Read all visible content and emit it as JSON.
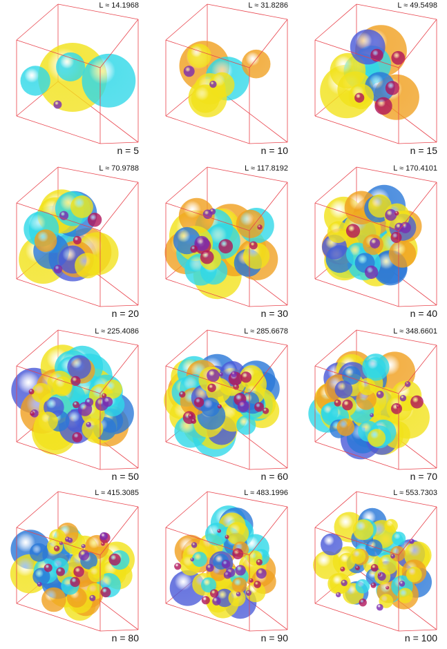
{
  "panels": [
    {
      "label": "L ≈ 14.1968",
      "caption": "n = 5",
      "n": 5
    },
    {
      "label": "L ≈ 31.8286",
      "caption": "n = 10",
      "n": 10
    },
    {
      "label": "L ≈ 49.5498",
      "caption": "n = 15",
      "n": 15
    },
    {
      "label": "L ≈ 70.9788",
      "caption": "n = 20",
      "n": 20
    },
    {
      "label": "L ≈ 117.8192",
      "caption": "n = 30",
      "n": 30
    },
    {
      "label": "L ≈ 170.4101",
      "caption": "n = 40",
      "n": 40
    },
    {
      "label": "L ≈ 225.4086",
      "caption": "n = 50",
      "n": 50
    },
    {
      "label": "L ≈ 285.6678",
      "caption": "n = 60",
      "n": 60
    },
    {
      "label": "L ≈ 348.6601",
      "caption": "n = 70",
      "n": 70
    },
    {
      "label": "L ≈ 415.3085",
      "caption": "n = 80",
      "n": 80
    },
    {
      "label": "L ≈ 483.1996",
      "caption": "n = 90",
      "n": 90
    },
    {
      "label": "L ≈ 553.7303",
      "caption": "n = 100",
      "n": 100
    }
  ],
  "colors": {
    "box_edge": "#e8414a",
    "yellow": "#f2e21a",
    "orange": "#f0a020",
    "cyan": "#2fd8e8",
    "blue": "#2a78d8",
    "indigo": "#4a5ad8",
    "purple": "#7a2ab0",
    "magenta": "#b0145a"
  }
}
